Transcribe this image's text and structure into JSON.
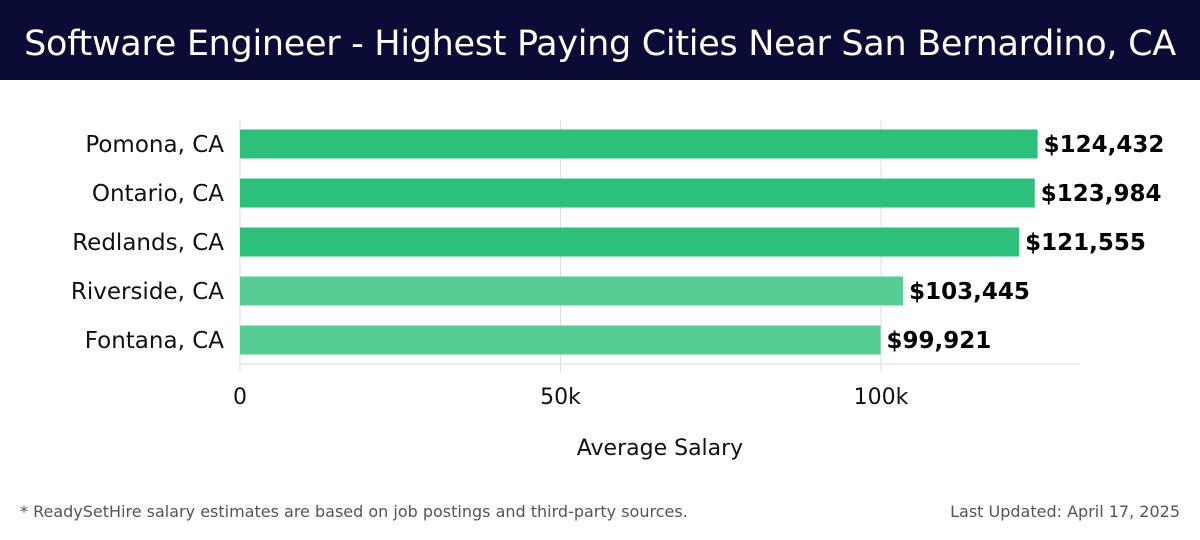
{
  "header": {
    "title": "Software Engineer - Highest Paying Cities Near San Bernardino, CA"
  },
  "footer": {
    "note": "* ReadySetHire salary estimates are based on job postings and third-party sources.",
    "updated": "Last Updated: April 17, 2025"
  },
  "colors": {
    "title_background": "#0b0c35",
    "bar_primary": "#2cc07a",
    "bar_secondary": "#56cd95",
    "grid": "#dddddd"
  },
  "chart_data": {
    "type": "bar",
    "orientation": "horizontal",
    "title": "Software Engineer - Highest Paying Cities Near San Bernardino, CA",
    "xlabel": "Average Salary",
    "ylabel": "",
    "xlim": [
      0,
      131000
    ],
    "grid": true,
    "categories": [
      "Pomona, CA",
      "Ontario, CA",
      "Redlands, CA",
      "Riverside, CA",
      "Fontana, CA"
    ],
    "values": [
      124432,
      123984,
      121555,
      103445,
      99921
    ],
    "value_labels": [
      "$124,432",
      "$123,984",
      "$121,555",
      "$103,445",
      "$99,921"
    ],
    "emphasis": [
      "primary",
      "primary",
      "primary",
      "secondary",
      "secondary"
    ],
    "ticks": [
      0,
      50000,
      100000
    ],
    "tick_labels": [
      "0",
      "50k",
      "100k"
    ]
  }
}
